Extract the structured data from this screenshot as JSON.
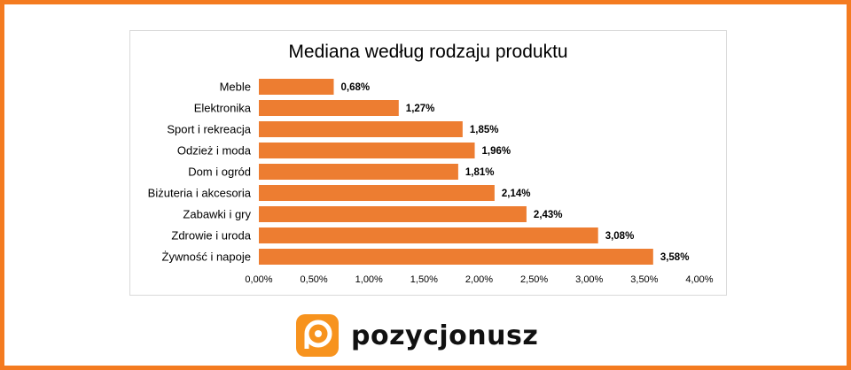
{
  "brand": {
    "name": "pozycjonusz",
    "accent_color": "#f47b20"
  },
  "chart_data": {
    "type": "bar",
    "orientation": "horizontal",
    "title": "Mediana według rodzaju produktu",
    "categories": [
      "Meble",
      "Elektronika",
      "Sport i rekreacja",
      "Odzież i moda",
      "Dom i ogród",
      "Biżuteria i akcesoria",
      "Zabawki i gry",
      "Zdrowie i uroda",
      "Żywność i napoje"
    ],
    "values": [
      0.68,
      1.27,
      1.85,
      1.96,
      1.81,
      2.14,
      2.43,
      3.08,
      3.58
    ],
    "value_labels": [
      "0,68%",
      "1,27%",
      "1,85%",
      "1,96%",
      "1,81%",
      "2,14%",
      "2,43%",
      "3,08%",
      "3,58%"
    ],
    "xlim": [
      0,
      4
    ],
    "x_ticks": [
      0,
      0.5,
      1,
      1.5,
      2,
      2.5,
      3,
      3.5,
      4
    ],
    "x_tick_labels": [
      "0,00%",
      "0,50%",
      "1,00%",
      "1,50%",
      "2,00%",
      "2,50%",
      "3,00%",
      "3,50%",
      "4,00%"
    ],
    "bar_color": "#ed7d31",
    "grid": false,
    "legend": "none"
  }
}
